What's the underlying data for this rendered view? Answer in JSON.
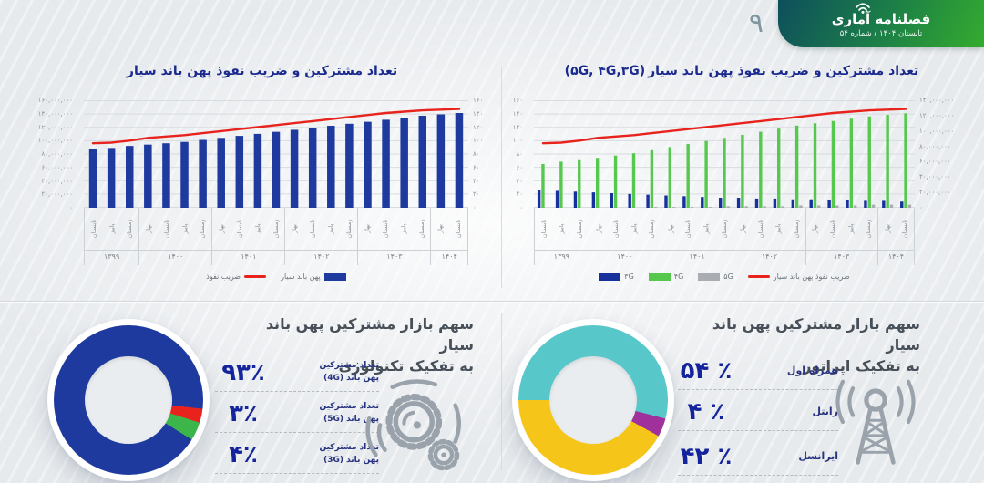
{
  "page": {
    "number": "۹"
  },
  "header": {
    "logo_title": "فصلنامه آماری",
    "subtitle": "تابستان ۱۴۰۴ / شماره ۵۴"
  },
  "colors": {
    "bar_blue": "#1e3a9f",
    "line_red": "#e8231d",
    "green_4g": "#56c84e",
    "gray_5g": "#a9adb2",
    "donut_navy": "#1e3a9f",
    "donut_red": "#e8231d",
    "donut_green": "#3cb54b",
    "donut_teal": "#57c7ca",
    "donut_purple": "#a0309b",
    "donut_yellow": "#f6c51a",
    "header_gradient_start": "#0e4f5c",
    "header_gradient_end": "#35ab2e",
    "title_navy": "#1b2a8e",
    "section_title_gray": "#475059"
  },
  "chart_data": [
    {
      "type": "bar",
      "title": "تعداد مشترکین و ضریب نفوذ پهن باند سیار",
      "title_suffix": "",
      "values_unit": "millions",
      "x_labels": [
        "تابستان",
        "پاییز",
        "زمستان",
        "بهار",
        "تابستان",
        "پاییز",
        "زمستان",
        "بهار",
        "تابستان",
        "پاییز",
        "زمستان",
        "بهار",
        "تابستان",
        "پاییز",
        "زمستان",
        "بهار",
        "تابستان",
        "پاییز",
        "زمستان",
        "بهار",
        "تابستان"
      ],
      "year_groups": [
        {
          "label": "۱۳۹۹",
          "count": 3
        },
        {
          "label": "۱۴۰۰",
          "count": 4
        },
        {
          "label": "۱۴۰۱",
          "count": 4
        },
        {
          "label": "۱۴۰۲",
          "count": 4
        },
        {
          "label": "۱۴۰۳",
          "count": 4
        },
        {
          "label": "۱۴۰۴",
          "count": 2
        }
      ],
      "left_ticks": [
        "۱۶۰,۰۰۰,۰۰۰",
        "۱۴۰,۰۰۰,۰۰۰",
        "۱۲۰,۰۰۰,۰۰۰",
        "۱۰۰,۰۰۰,۰۰۰",
        "۸۰,۰۰۰,۰۰۰",
        "۶۰,۰۰۰,۰۰۰",
        "۴۰,۰۰۰,۰۰۰",
        "۲۰,۰۰۰,۰۰۰",
        "۰"
      ],
      "right_ticks": [
        "۱۶۰",
        "۱۴۰",
        "۱۲۰",
        "۱۰۰",
        "۸۰",
        "۶۰",
        "۴۰",
        "۲۰",
        "۰"
      ],
      "bar_axis_max_millions": 160,
      "line_axis_max": 160,
      "legend_swatch_side": "right",
      "series": [
        {
          "name": "پهن باند سیار",
          "type": "bar",
          "color": "#1e3a9f",
          "values": [
            88,
            89,
            92,
            94,
            96,
            98,
            101,
            104,
            107,
            110,
            113,
            116,
            119,
            122,
            125,
            128,
            131,
            134,
            137,
            139,
            141
          ]
        },
        {
          "name": "ضریب نفوذ",
          "type": "line",
          "color": "#e8231d",
          "values": [
            96,
            97,
            100,
            104,
            106,
            108,
            111,
            114,
            117,
            120,
            123,
            126,
            129,
            132,
            135,
            138,
            141,
            143,
            145,
            146,
            147
          ]
        }
      ],
      "legend": [
        {
          "label": "ضریب نفوذ",
          "swatch": "line",
          "color": "#e8231d"
        },
        {
          "label": "پهن باند سیار",
          "swatch": "rect",
          "color": "#1e3a9f"
        }
      ]
    },
    {
      "type": "bar",
      "title": "تعداد مشترکین و ضریب نفوذ پهن باند سیار",
      "title_suffix": "(۵G, ۴G,۳G)",
      "values_unit": "millions",
      "x_labels": [
        "تابستان",
        "پاییز",
        "زمستان",
        "بهار",
        "تابستان",
        "پاییز",
        "زمستان",
        "بهار",
        "تابستان",
        "پاییز",
        "زمستان",
        "بهار",
        "تابستان",
        "پاییز",
        "زمستان",
        "بهار",
        "تابستان",
        "پاییز",
        "زمستان",
        "بهار",
        "تابستان"
      ],
      "year_groups": [
        {
          "label": "۱۳۹۹",
          "count": 3
        },
        {
          "label": "۱۴۰۰",
          "count": 4
        },
        {
          "label": "۱۴۰۱",
          "count": 4
        },
        {
          "label": "۱۴۰۲",
          "count": 4
        },
        {
          "label": "۱۴۰۳",
          "count": 4
        },
        {
          "label": "۱۴۰۴",
          "count": 2
        }
      ],
      "left_ticks": [
        "۱۶۰",
        "۱۴۰",
        "۱۲۰",
        "۱۰۰",
        "۸۰",
        "۶۰",
        "۴۰",
        "۲۰",
        "۰"
      ],
      "right_ticks": [
        "۱۴۰,۰۰۰,۰۰۰",
        "۱۲۰,۰۰۰,۰۰۰",
        "۱۰۰,۰۰۰,۰۰۰",
        "۸۰,۰۰۰,۰۰۰",
        "۶۰,۰۰۰,۰۰۰",
        "۴۰,۰۰۰,۰۰۰",
        "۲۰,۰۰۰,۰۰۰",
        "۰"
      ],
      "bar_axis_max_millions": 140,
      "line_axis_max": 160,
      "legend_swatch_side": "left",
      "series": [
        {
          "name": "۳G",
          "type": "bar",
          "color": "#16309c",
          "values": [
            23,
            22,
            21,
            20,
            19,
            18,
            17,
            16,
            15,
            14,
            13,
            13,
            12,
            12,
            11,
            11,
            10,
            10,
            9,
            9,
            8
          ]
        },
        {
          "name": "۴G",
          "type": "bar",
          "color": "#56c84e",
          "values": [
            57,
            60,
            62,
            65,
            68,
            71,
            75,
            79,
            83,
            87,
            91,
            95,
            99,
            103,
            107,
            110,
            113,
            116,
            119,
            121,
            123
          ]
        },
        {
          "name": "۵G",
          "type": "bar",
          "color": "#a9adb2",
          "values": [
            0,
            0,
            0,
            0,
            0,
            0,
            1,
            1,
            1,
            1,
            2,
            2,
            2,
            2,
            3,
            3,
            3,
            3,
            4,
            4,
            4
          ]
        },
        {
          "name": "ضریب نفوذ پهن باند سیار",
          "type": "line",
          "color": "#e8231d",
          "values": [
            96,
            97,
            100,
            104,
            106,
            108,
            111,
            114,
            117,
            120,
            123,
            126,
            129,
            132,
            135,
            138,
            141,
            143,
            145,
            146,
            147
          ]
        }
      ],
      "legend": [
        {
          "label": "۳G",
          "swatch": "rect",
          "color": "#16309c"
        },
        {
          "label": "۴G",
          "swatch": "rect",
          "color": "#56c84e"
        },
        {
          "label": "۵G",
          "swatch": "rect",
          "color": "#a9adb2"
        },
        {
          "label": "ضریب نفوذ پهن باند سیار",
          "swatch": "line",
          "color": "#e8231d"
        }
      ]
    },
    {
      "type": "pie",
      "title": "سهم بازار مشترکین پهن باند سیار به تفکیک تکنولوژی",
      "categories": [
        "تعداد مشترکین پهن باند (4G)",
        "تعداد مشترکین پهن باند (5G)",
        "تعداد مشترکین پهن باند (3G)"
      ],
      "values": [
        93,
        3,
        4
      ]
    },
    {
      "type": "pie",
      "title": "سهم بازار مشترکین پهن باند سیار به تفکیک اپراتور",
      "categories": [
        "همراه اول",
        "رایتل",
        "ایرانسل"
      ],
      "values": [
        54,
        4,
        42
      ]
    }
  ],
  "tech_section": {
    "title_line1": "سهم بازار مشترکین پهن باند سیار",
    "title_line2": "به تفکیک تکنولوژی",
    "donut": {
      "start_deg": 122,
      "segments": [
        {
          "label": "پهن باند (4G)",
          "value": 93,
          "color": "#1e3a9f"
        },
        {
          "label": "پهن باند (5G)",
          "value": 3,
          "color": "#e8231d"
        },
        {
          "label": "پهن باند (3G)",
          "value": 4,
          "color": "#3cb54b"
        }
      ]
    },
    "stats": [
      {
        "percent": "۹۳٪",
        "label_line1": "تعداد مشترکین",
        "label_line2": "پهن باند (4G)"
      },
      {
        "percent": "۳٪",
        "label_line1": "تعداد مشترکین",
        "label_line2": "پهن باند (5G)"
      },
      {
        "percent": "۴٪",
        "label_line1": "تعداد مشترکین",
        "label_line2": "پهن باند (3G)"
      }
    ]
  },
  "operator_section": {
    "title_line1": "سهم بازار مشترکین پهن باند سیار",
    "title_line2": "به تفکیک اپراتور",
    "donut": {
      "start_deg": 270,
      "segments": [
        {
          "label": "همراه اول",
          "value": 54,
          "color": "#57c7ca"
        },
        {
          "label": "رایتل",
          "value": 4,
          "color": "#a0309b"
        },
        {
          "label": "ایرانسل",
          "value": 42,
          "color": "#f6c51a"
        }
      ]
    },
    "stats": [
      {
        "percent": "۵۴ ٪",
        "label": "همراه اول"
      },
      {
        "percent": "۴ ٪",
        "label": "رایتل"
      },
      {
        "percent": "۴۲ ٪",
        "label": "ایرانسل"
      }
    ]
  }
}
